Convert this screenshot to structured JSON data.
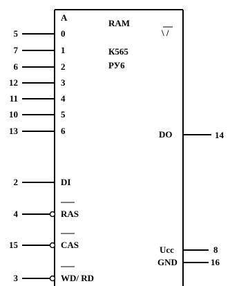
{
  "chip": {
    "title": "RAM",
    "part_number": "К565",
    "series": "РУ6",
    "addr_header": "A",
    "function_symbol": "\\ /"
  },
  "address_pins": [
    {
      "pin": "5",
      "label": "0"
    },
    {
      "pin": "7",
      "label": "1"
    },
    {
      "pin": "6",
      "label": "2"
    },
    {
      "pin": "12",
      "label": "3"
    },
    {
      "pin": "11",
      "label": "4"
    },
    {
      "pin": "10",
      "label": "5"
    },
    {
      "pin": "13",
      "label": "6"
    }
  ],
  "data_in": {
    "pin": "2",
    "label": "DI"
  },
  "control_pins": [
    {
      "pin": "4",
      "label": "RAS",
      "inverted": true
    },
    {
      "pin": "15",
      "label": "CAS",
      "inverted": true
    },
    {
      "pin": "3",
      "label": "WD/ RD",
      "inverted": true
    }
  ],
  "data_out": {
    "pin": "14",
    "label": "DO"
  },
  "power_pins": [
    {
      "pin": "8",
      "label": "Ucc"
    },
    {
      "pin": "16",
      "label": "GND"
    }
  ]
}
